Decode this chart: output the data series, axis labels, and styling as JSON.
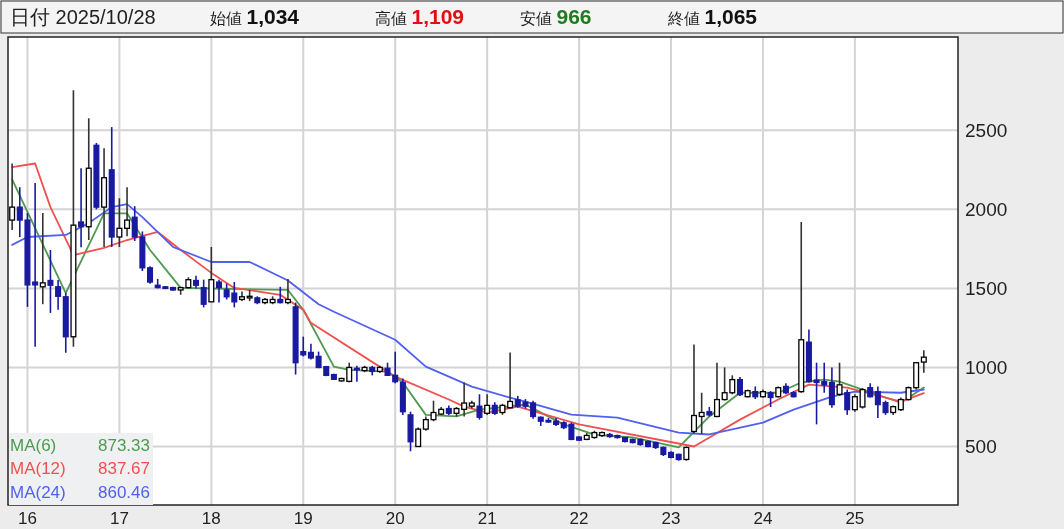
{
  "chart_data": {
    "type": "candlestick",
    "title": "日付 2025/10/28",
    "annotations": [
      "始値 **1,034**",
      "高値 **1,109**",
      "安値 **966**",
      "終値 **1,065**",
      "873.33",
      "837.67",
      "860.46"
    ],
    "x": [
      "2015-11",
      "2015-12",
      "2016-01",
      "2016-02",
      "2016-03",
      "2016-04",
      "2016-05",
      "2016-06",
      "2016-07",
      "2016-08",
      "2016-09",
      "2016-10",
      "2016-11",
      "2016-12",
      "2017-01",
      "2017-02",
      "2017-03",
      "2017-04",
      "2017-05",
      "2017-06",
      "2017-07",
      "2017-08",
      "2017-09",
      "2017-10",
      "2017-11",
      "2017-12",
      "2018-01",
      "2018-02",
      "2018-03",
      "2018-04",
      "2018-05",
      "2018-06",
      "2018-07",
      "2018-08",
      "2018-09",
      "2018-10",
      "2018-11",
      "2018-12",
      "2019-01",
      "2019-02",
      "2019-03",
      "2019-04",
      "2019-05",
      "2019-06",
      "2019-07",
      "2019-08",
      "2019-09",
      "2019-10",
      "2019-11",
      "2019-12",
      "2020-01",
      "2020-02",
      "2020-03",
      "2020-04",
      "2020-05",
      "2020-06",
      "2020-07",
      "2020-08",
      "2020-09",
      "2020-10",
      "2020-11",
      "2020-12",
      "2021-01",
      "2021-02",
      "2021-03",
      "2021-04",
      "2021-05",
      "2021-06",
      "2021-07",
      "2021-08",
      "2021-09",
      "2021-10",
      "2021-11",
      "2021-12",
      "2022-01",
      "2022-02",
      "2022-03",
      "2022-04",
      "2022-05",
      "2022-06",
      "2022-07",
      "2022-08",
      "2022-09",
      "2022-10",
      "2022-11",
      "2022-12",
      "2023-01",
      "2023-02",
      "2023-03",
      "2023-04",
      "2023-05",
      "2023-06",
      "2023-07",
      "2023-08",
      "2023-09",
      "2023-10",
      "2023-11",
      "2023-12",
      "2024-01",
      "2024-02",
      "2024-03",
      "2024-04",
      "2024-05",
      "2024-06",
      "2024-07",
      "2024-08",
      "2024-09",
      "2024-10",
      "2024-11",
      "2024-12",
      "2025-01",
      "2025-02",
      "2025-03",
      "2025-04",
      "2025-05",
      "2025-06",
      "2025-07",
      "2025-08",
      "2025-09",
      "2025-10"
    ],
    "ohlc": [
      [
        1932,
        2290,
        1870,
        2014
      ],
      [
        2014,
        2140,
        1825,
        1932
      ],
      [
        1932,
        1977,
        1383,
        1522
      ],
      [
        1540,
        2166,
        1131,
        1522
      ],
      [
        1510,
        1977,
        1400,
        1535
      ],
      [
        1550,
        1743,
        1345,
        1520
      ],
      [
        1510,
        1553,
        1365,
        1450
      ],
      [
        1447,
        1472,
        1093,
        1194
      ],
      [
        1194,
        2753,
        1131,
        1900
      ],
      [
        1920,
        2260,
        1760,
        1890
      ],
      [
        1890,
        2576,
        1806,
        2260
      ],
      [
        2405,
        2420,
        2000,
        2014
      ],
      [
        2014,
        2387,
        1762,
        2200
      ],
      [
        2250,
        2520,
        1762,
        1825
      ],
      [
        1825,
        2070,
        1762,
        1880
      ],
      [
        1880,
        2140,
        1830,
        1932
      ],
      [
        1950,
        2020,
        1800,
        1825
      ],
      [
        1825,
        1860,
        1610,
        1630
      ],
      [
        1630,
        1640,
        1530,
        1540
      ],
      [
        1520,
        1560,
        1500,
        1505
      ],
      [
        1510,
        1515,
        1495,
        1500
      ],
      [
        1505,
        1510,
        1485,
        1490
      ],
      [
        1490,
        1510,
        1460,
        1505
      ],
      [
        1505,
        1570,
        1500,
        1555
      ],
      [
        1550,
        1580,
        1500,
        1520
      ],
      [
        1505,
        1555,
        1380,
        1400
      ],
      [
        1415,
        1762,
        1415,
        1555
      ],
      [
        1540,
        1555,
        1410,
        1505
      ],
      [
        1490,
        1530,
        1430,
        1447
      ],
      [
        1470,
        1540,
        1380,
        1415
      ],
      [
        1430,
        1480,
        1420,
        1447
      ],
      [
        1440,
        1490,
        1420,
        1450
      ],
      [
        1440,
        1450,
        1400,
        1410
      ],
      [
        1410,
        1440,
        1400,
        1430
      ],
      [
        1410,
        1450,
        1400,
        1430
      ],
      [
        1430,
        1510,
        1405,
        1410
      ],
      [
        1410,
        1560,
        1400,
        1430
      ],
      [
        1383,
        1410,
        955,
        1030
      ],
      [
        1100,
        1195,
        1070,
        1080
      ],
      [
        1095,
        1150,
        1050,
        1060
      ],
      [
        1070,
        1100,
        995,
        1000
      ],
      [
        1005,
        1010,
        945,
        950
      ],
      [
        955,
        960,
        920,
        925
      ],
      [
        915,
        935,
        910,
        930
      ],
      [
        912,
        1030,
        905,
        1000
      ],
      [
        995,
        1010,
        910,
        985
      ],
      [
        980,
        1010,
        970,
        1000
      ],
      [
        1000,
        1010,
        950,
        975
      ],
      [
        975,
        1010,
        965,
        1000
      ],
      [
        995,
        1030,
        950,
        950
      ],
      [
        950,
        1100,
        900,
        910
      ],
      [
        905,
        930,
        700,
        720
      ],
      [
        700,
        720,
        470,
        530
      ],
      [
        500,
        620,
        500,
        610
      ],
      [
        610,
        690,
        600,
        670
      ],
      [
        670,
        790,
        660,
        715
      ],
      [
        705,
        750,
        700,
        735
      ],
      [
        740,
        760,
        700,
        710
      ],
      [
        710,
        750,
        690,
        740
      ],
      [
        735,
        905,
        690,
        775
      ],
      [
        755,
        790,
        740,
        775
      ],
      [
        755,
        830,
        670,
        685
      ],
      [
        710,
        830,
        700,
        760
      ],
      [
        760,
        780,
        700,
        710
      ],
      [
        715,
        770,
        700,
        760
      ],
      [
        745,
        1095,
        740,
        785
      ],
      [
        795,
        820,
        745,
        755
      ],
      [
        780,
        800,
        740,
        755
      ],
      [
        775,
        790,
        675,
        690
      ],
      [
        685,
        690,
        630,
        660
      ],
      [
        665,
        680,
        650,
        655
      ],
      [
        660,
        680,
        630,
        640
      ],
      [
        650,
        660,
        610,
        620
      ],
      [
        640,
        650,
        540,
        545
      ],
      [
        560,
        565,
        535,
        540
      ],
      [
        545,
        585,
        540,
        570
      ],
      [
        557,
        600,
        550,
        588
      ],
      [
        569,
        595,
        560,
        588
      ],
      [
        576,
        585,
        555,
        563
      ],
      [
        569,
        575,
        550,
        557
      ],
      [
        557,
        560,
        525,
        532
      ],
      [
        544,
        550,
        520,
        525
      ],
      [
        544,
        550,
        505,
        513
      ],
      [
        532,
        540,
        495,
        500
      ],
      [
        525,
        530,
        485,
        494
      ],
      [
        494,
        500,
        440,
        450
      ],
      [
        462,
        470,
        425,
        431
      ],
      [
        450,
        455,
        410,
        418
      ],
      [
        418,
        500,
        410,
        494
      ],
      [
        595,
        1145,
        580,
        696
      ],
      [
        690,
        840,
        580,
        715
      ],
      [
        720,
        750,
        690,
        700
      ],
      [
        690,
        1030,
        685,
        797
      ],
      [
        797,
        1000,
        790,
        840
      ],
      [
        840,
        950,
        830,
        923
      ],
      [
        923,
        940,
        820,
        828
      ],
      [
        815,
        860,
        810,
        853
      ],
      [
        847,
        880,
        800,
        815
      ],
      [
        815,
        860,
        810,
        847
      ],
      [
        840,
        850,
        750,
        810
      ],
      [
        815,
        880,
        810,
        872
      ],
      [
        880,
        900,
        830,
        840
      ],
      [
        840,
        850,
        810,
        815
      ],
      [
        847,
        1920,
        840,
        1175
      ],
      [
        1160,
        1240,
        905,
        910
      ],
      [
        920,
        1030,
        640,
        905
      ],
      [
        910,
        1030,
        840,
        890
      ],
      [
        905,
        1000,
        745,
        765
      ],
      [
        830,
        1030,
        820,
        890
      ],
      [
        840,
        860,
        700,
        733
      ],
      [
        733,
        830,
        720,
        815
      ],
      [
        750,
        870,
        740,
        860
      ],
      [
        872,
        900,
        810,
        815
      ],
      [
        847,
        880,
        680,
        765
      ],
      [
        777,
        790,
        700,
        715
      ],
      [
        715,
        760,
        700,
        752
      ],
      [
        733,
        810,
        725,
        797
      ],
      [
        797,
        880,
        790,
        872
      ],
      [
        872,
        1030,
        860,
        1030
      ],
      [
        1034,
        1109,
        966,
        1065
      ]
    ],
    "series": [
      {
        "name": "MA(6)",
        "type": "line",
        "color": "#4f9a4f",
        "x": [
          "2015-11",
          "2016-06",
          "2016-11",
          "2017-02",
          "2017-05",
          "2017-09",
          "2018-11",
          "2019-01",
          "2019-05",
          "2019-07",
          "2019-12",
          "2020-02",
          "2020-05",
          "2020-09",
          "2020-12",
          "2021-06",
          "2021-11",
          "2022-03",
          "2022-08",
          "2023-02",
          "2023-06",
          "2023-10",
          "2024-03",
          "2024-06",
          "2024-09",
          "2024-11",
          "2025-05",
          "2025-07",
          "2025-10"
        ],
        "values": [
          2190,
          1470,
          1975,
          1975,
          1743,
          1503,
          1490,
          1365,
          1005,
          985,
          973,
          905,
          700,
          690,
          733,
          765,
          640,
          575,
          557,
          494,
          690,
          840,
          840,
          905,
          923,
          910,
          810,
          777,
          873.33
        ]
      },
      {
        "name": "MA(12)",
        "type": "line",
        "color": "#f05050",
        "x": [
          "2015-11",
          "2016-02",
          "2016-04",
          "2016-07",
          "2016-11",
          "2017-02",
          "2017-06",
          "2017-09",
          "2018-01",
          "2018-04",
          "2018-10",
          "2019-01",
          "2019-02",
          "2020-01",
          "2020-08",
          "2020-10",
          "2021-01",
          "2021-05",
          "2022-01",
          "2023-04",
          "2023-10",
          "2024-03",
          "2024-07",
          "2024-12",
          "2025-07",
          "2025-10"
        ],
        "values": [
          2267,
          2290,
          2014,
          1711,
          1756,
          1806,
          1857,
          1743,
          1598,
          1503,
          1459,
          1365,
          1282,
          942,
          797,
          752,
          715,
          752,
          640,
          500,
          670,
          797,
          891,
          872,
          784,
          837.67
        ]
      },
      {
        "name": "MA(24)",
        "type": "line",
        "color": "#5060f0",
        "x": [
          "2015-11",
          "2016-01",
          "2016-06",
          "2016-09",
          "2016-12",
          "2017-02",
          "2017-04",
          "2017-08",
          "2018-01",
          "2018-06",
          "2018-11",
          "2019-03",
          "2019-05",
          "2020-01",
          "2020-05",
          "2020-11",
          "2021-04",
          "2021-06",
          "2021-12",
          "2022-06",
          "2023-02",
          "2023-06",
          "2024-01",
          "2024-05",
          "2024-10",
          "2025-01",
          "2025-07",
          "2025-10"
        ],
        "values": [
          1775,
          1825,
          1838,
          1913,
          2014,
          2033,
          1951,
          1762,
          1667,
          1667,
          1550,
          1400,
          1352,
          1175,
          1005,
          879,
          809,
          784,
          702,
          683,
          588,
          576,
          651,
          733,
          815,
          847,
          840,
          860.46
        ]
      }
    ],
    "xlim": [
      "2015-10-15",
      "2026-02-15"
    ],
    "xticks": [
      {
        "value": "2016-01",
        "label": "16"
      },
      {
        "value": "2017-01",
        "label": "17"
      },
      {
        "value": "2018-01",
        "label": "18"
      },
      {
        "value": "2019-01",
        "label": "19"
      },
      {
        "value": "2020-01",
        "label": "20"
      },
      {
        "value": "2021-01",
        "label": "21"
      },
      {
        "value": "2022-01",
        "label": "22"
      },
      {
        "value": "2023-01",
        "label": "23"
      },
      {
        "value": "2024-01",
        "label": "24"
      },
      {
        "value": "2025-01",
        "label": "25"
      }
    ],
    "ylim": [
      130,
      3090
    ],
    "yticks": [
      500,
      1000,
      1500,
      2000,
      2500
    ],
    "grid": true,
    "legend": "bottom left"
  }
}
